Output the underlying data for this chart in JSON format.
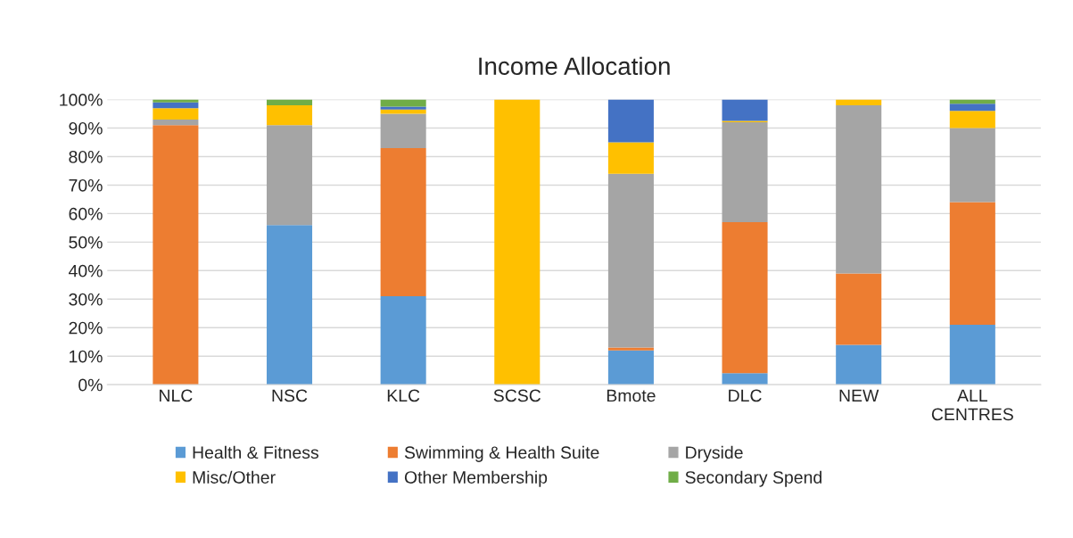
{
  "chart_data": {
    "type": "bar",
    "title": "Income Allocation",
    "stacked": true,
    "categories": [
      "NLC",
      "NSC",
      "KLC",
      "SCSC",
      "Bmote",
      "DLC",
      "NEW",
      "ALL\nCENTRES"
    ],
    "series": [
      {
        "name": "Health & Fitness",
        "color": "#5b9bd5",
        "values": [
          0,
          56,
          31,
          0,
          12,
          4,
          14,
          21
        ]
      },
      {
        "name": "Swimming & Health Suite",
        "color": "#ed7d31",
        "values": [
          91,
          0,
          52,
          0,
          1,
          53,
          25,
          43
        ]
      },
      {
        "name": "Dryside",
        "color": "#a5a5a5",
        "values": [
          2,
          35,
          12,
          0,
          61,
          35,
          59,
          26
        ]
      },
      {
        "name": "Misc/Other",
        "color": "#ffc000",
        "values": [
          4,
          7,
          1.5,
          100,
          11,
          0.5,
          2,
          6
        ]
      },
      {
        "name": "Other Membership",
        "color": "#4472c4",
        "values": [
          2,
          0,
          1,
          0,
          15,
          7.5,
          0,
          2.5
        ]
      },
      {
        "name": "Secondary Spend",
        "color": "#70ad47",
        "values": [
          1,
          2,
          2.5,
          0,
          0,
          0,
          0,
          1.5
        ]
      }
    ],
    "ylim": [
      0,
      100
    ],
    "yticks": [
      {
        "value": 0,
        "label": "0%"
      },
      {
        "value": 10,
        "label": "10%"
      },
      {
        "value": 20,
        "label": "20%"
      },
      {
        "value": 30,
        "label": "30%"
      },
      {
        "value": 40,
        "label": "40%"
      },
      {
        "value": 50,
        "label": "50%"
      },
      {
        "value": 60,
        "label": "60%"
      },
      {
        "value": 70,
        "label": "70%"
      },
      {
        "value": 80,
        "label": "80%"
      },
      {
        "value": 90,
        "label": "90%"
      },
      {
        "value": 100,
        "label": "100%"
      }
    ],
    "grid": "y",
    "legend": "bottom"
  }
}
